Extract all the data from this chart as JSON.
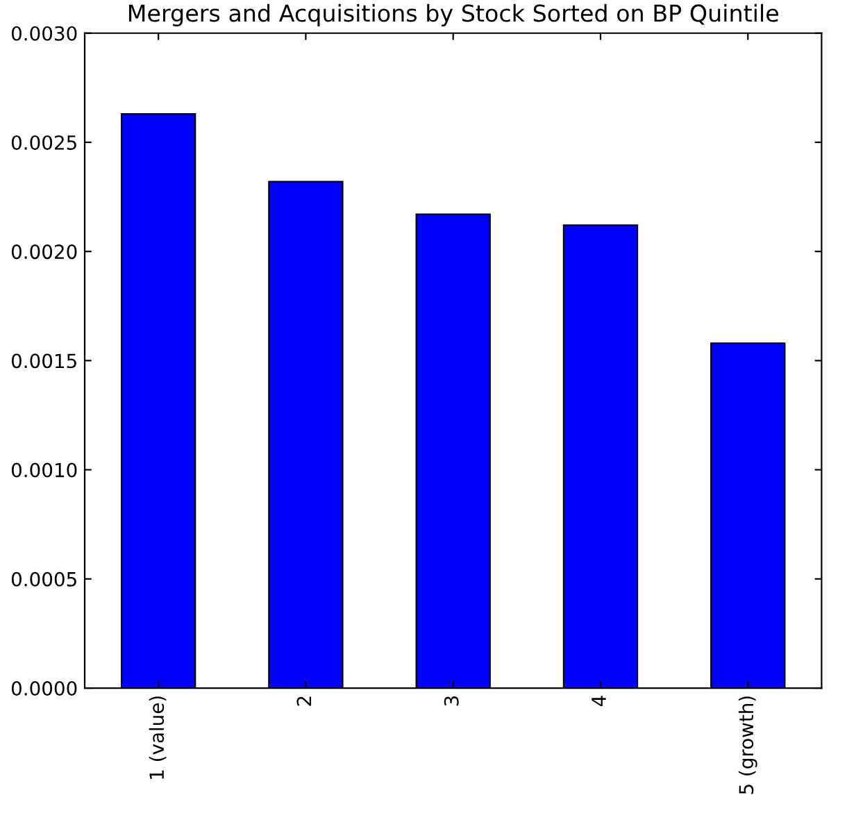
{
  "chart_data": {
    "type": "bar",
    "title": "Mergers and Acquisitions by Stock Sorted on BP Quintile",
    "categories": [
      "1 (value)",
      "2",
      "3",
      "4",
      "5 (growth)"
    ],
    "values": [
      0.00263,
      0.00232,
      0.00217,
      0.00212,
      0.00158
    ],
    "color": "#0000ff",
    "ylim": [
      0,
      0.003
    ],
    "yticks": [
      {
        "value": 0,
        "label": "0.0000"
      },
      {
        "value": 0.0005,
        "label": "0.0005"
      },
      {
        "value": 0.001,
        "label": "0.0010"
      },
      {
        "value": 0.0015,
        "label": "0.0015"
      },
      {
        "value": 0.002,
        "label": "0.0020"
      },
      {
        "value": 0.0025,
        "label": "0.0025"
      },
      {
        "value": 0.003,
        "label": "0.0030"
      }
    ],
    "grid": false,
    "legend": false
  }
}
